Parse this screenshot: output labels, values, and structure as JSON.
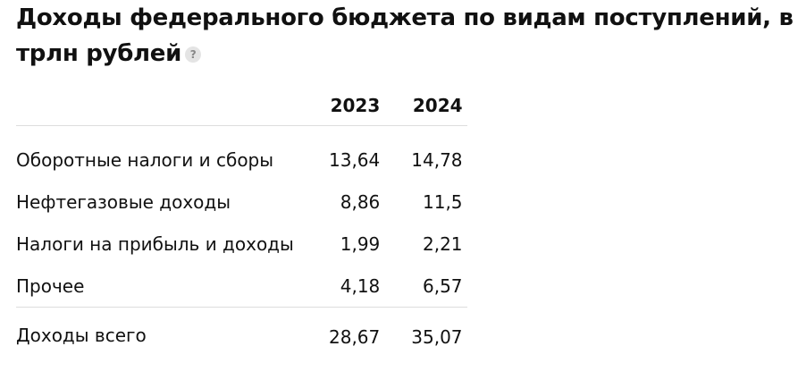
{
  "header": {
    "title": "Доходы федерального бюджета по видам поступлений, в трлн рублей",
    "help_icon": "?"
  },
  "table": {
    "columns": [
      "2023",
      "2024"
    ],
    "rows": [
      [
        "Оборотные налоги и сборы",
        "13,64",
        "14,78"
      ],
      [
        "Нефтегазовые доходы",
        "8,86",
        "11,5"
      ],
      [
        "Налоги на прибыль и доходы",
        "1,99",
        "2,21"
      ],
      [
        "Прочее",
        "4,18",
        "6,57"
      ]
    ],
    "total": [
      "Доходы всего",
      "28,67",
      "35,07"
    ]
  }
}
